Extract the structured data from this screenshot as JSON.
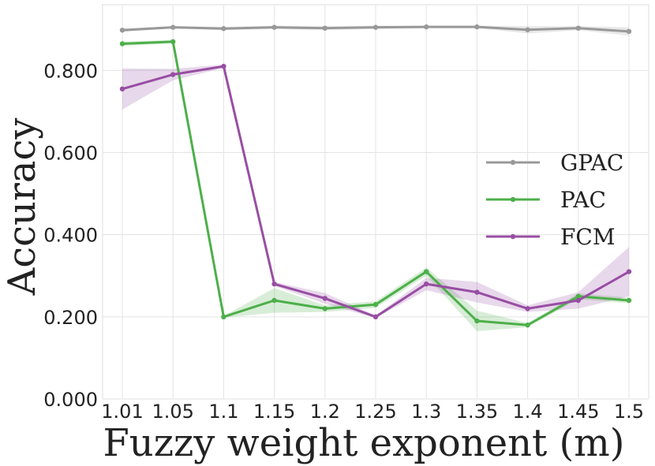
{
  "chart_data": {
    "type": "line",
    "title": "",
    "xlabel": "Fuzzy weight exponent (m)",
    "ylabel": "Accuracy",
    "categories": [
      "1.01",
      "1.05",
      "1.1",
      "1.15",
      "1.2",
      "1.25",
      "1.3",
      "1.35",
      "1.4",
      "1.45",
      "1.5"
    ],
    "ylim": [
      0.0,
      0.96
    ],
    "yticks": [
      0.0,
      0.2,
      0.4,
      0.6,
      0.8
    ],
    "ytick_labels": [
      "0.000",
      "0.200",
      "0.400",
      "0.600",
      "0.800"
    ],
    "grid": true,
    "legend_position": "center-right",
    "series": [
      {
        "name": "GPAC",
        "color": "#999999",
        "values": [
          0.898,
          0.905,
          0.902,
          0.905,
          0.903,
          0.905,
          0.906,
          0.906,
          0.899,
          0.903,
          0.895
        ],
        "lower": [
          0.894,
          0.902,
          0.898,
          0.901,
          0.898,
          0.901,
          0.903,
          0.903,
          0.89,
          0.898,
          0.885
        ],
        "upper": [
          0.902,
          0.908,
          0.906,
          0.909,
          0.908,
          0.909,
          0.909,
          0.909,
          0.908,
          0.908,
          0.905
        ]
      },
      {
        "name": "PAC",
        "color": "#4daf4a",
        "values": [
          0.865,
          0.87,
          0.2,
          0.24,
          0.22,
          0.23,
          0.31,
          0.19,
          0.18,
          0.25,
          0.24
        ],
        "lower": [
          0.86,
          0.866,
          0.198,
          0.21,
          0.212,
          0.222,
          0.3,
          0.165,
          0.175,
          0.243,
          0.233
        ],
        "upper": [
          0.87,
          0.874,
          0.202,
          0.27,
          0.228,
          0.238,
          0.32,
          0.215,
          0.185,
          0.257,
          0.247
        ]
      },
      {
        "name": "FCM",
        "color": "#984ea3",
        "values": [
          0.755,
          0.79,
          0.81,
          0.28,
          0.245,
          0.2,
          0.28,
          0.26,
          0.22,
          0.24,
          0.31
        ],
        "lower": [
          0.705,
          0.776,
          0.806,
          0.275,
          0.232,
          0.197,
          0.265,
          0.235,
          0.212,
          0.22,
          0.25
        ],
        "upper": [
          0.805,
          0.804,
          0.814,
          0.285,
          0.258,
          0.203,
          0.295,
          0.285,
          0.228,
          0.26,
          0.37
        ]
      }
    ]
  }
}
